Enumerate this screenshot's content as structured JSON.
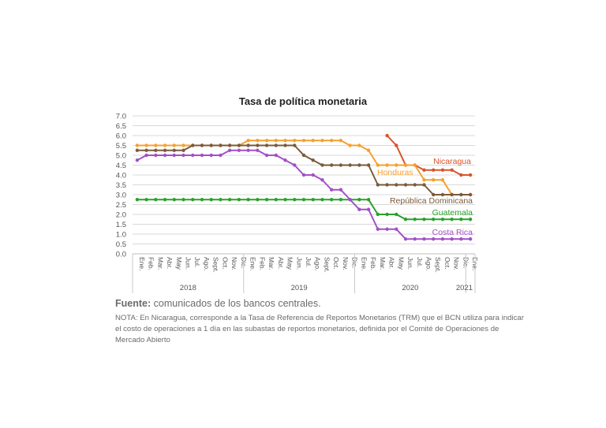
{
  "chart_data": {
    "type": "line",
    "title": "Tasa de política monetaria",
    "xlabel": "",
    "ylabel": "",
    "ylim": [
      0,
      7
    ],
    "yticks": [
      "0.0",
      "0.5",
      "1.0",
      "1.5",
      "2.0",
      "2.5",
      "3.0",
      "3.5",
      "4.0",
      "4.5",
      "5.0",
      "5.5",
      "6.0",
      "6.5",
      "7.0"
    ],
    "grid": true,
    "x_months": [
      "Ene.",
      "Feb.",
      "Mar.",
      "Abr.",
      "May",
      "Jun.",
      "Jul.",
      "Ago.",
      "Sept.",
      "Oct.",
      "Nov.",
      "Dic.",
      "Ene.",
      "Feb.",
      "Mar.",
      "Abr.",
      "May",
      "Jun.",
      "Jul.",
      "Ago.",
      "Sept.",
      "Oct.",
      "Nov.",
      "Dic.",
      "Ene.",
      "Feb.",
      "Mar.",
      "Abr.",
      "May",
      "Jun.",
      "Jul.",
      "Ago.",
      "Sept.",
      "Oct.",
      "Nov.",
      "Dic.",
      "Ene."
    ],
    "x_years": [
      {
        "label": "2018",
        "start": 0,
        "end": 11
      },
      {
        "label": "2019",
        "start": 12,
        "end": 23
      },
      {
        "label": "2020",
        "start": 24,
        "end": 35
      },
      {
        "label": "2021",
        "start": 36,
        "end": 36
      }
    ],
    "series": [
      {
        "name": "Nicaragua",
        "color": "#d9532b",
        "values": [
          null,
          null,
          null,
          null,
          null,
          null,
          null,
          null,
          null,
          null,
          null,
          null,
          null,
          null,
          null,
          null,
          null,
          null,
          null,
          null,
          null,
          null,
          null,
          null,
          null,
          null,
          null,
          6.0,
          5.5,
          4.5,
          4.5,
          4.25,
          4.25,
          4.25,
          4.25,
          4.0,
          4.0
        ]
      },
      {
        "name": "Honduras",
        "color": "#f5a031",
        "values": [
          5.5,
          5.5,
          5.5,
          5.5,
          5.5,
          5.5,
          5.5,
          5.5,
          5.5,
          5.5,
          5.5,
          5.5,
          5.75,
          5.75,
          5.75,
          5.75,
          5.75,
          5.75,
          5.75,
          5.75,
          5.75,
          5.75,
          5.75,
          5.5,
          5.5,
          5.25,
          4.5,
          4.5,
          4.5,
          4.5,
          4.5,
          3.75,
          3.75,
          3.75,
          3.0,
          3.0,
          3.0
        ]
      },
      {
        "name": "República Dominicana",
        "color": "#7b5a3a",
        "values": [
          5.25,
          5.25,
          5.25,
          5.25,
          5.25,
          5.25,
          5.5,
          5.5,
          5.5,
          5.5,
          5.5,
          5.5,
          5.5,
          5.5,
          5.5,
          5.5,
          5.5,
          5.5,
          5.0,
          4.75,
          4.5,
          4.5,
          4.5,
          4.5,
          4.5,
          4.5,
          3.5,
          3.5,
          3.5,
          3.5,
          3.5,
          3.5,
          3.0,
          3.0,
          3.0,
          3.0,
          3.0
        ]
      },
      {
        "name": "Guatemala",
        "color": "#2aa12a",
        "values": [
          2.75,
          2.75,
          2.75,
          2.75,
          2.75,
          2.75,
          2.75,
          2.75,
          2.75,
          2.75,
          2.75,
          2.75,
          2.75,
          2.75,
          2.75,
          2.75,
          2.75,
          2.75,
          2.75,
          2.75,
          2.75,
          2.75,
          2.75,
          2.75,
          2.75,
          2.75,
          2.0,
          2.0,
          2.0,
          1.75,
          1.75,
          1.75,
          1.75,
          1.75,
          1.75,
          1.75,
          1.75
        ]
      },
      {
        "name": "Costa Rica",
        "color": "#a34fc9",
        "values": [
          4.75,
          5.0,
          5.0,
          5.0,
          5.0,
          5.0,
          5.0,
          5.0,
          5.0,
          5.0,
          5.25,
          5.25,
          5.25,
          5.25,
          5.0,
          5.0,
          4.75,
          4.5,
          4.0,
          4.0,
          3.75,
          3.25,
          3.25,
          2.75,
          2.25,
          2.25,
          1.25,
          1.25,
          1.25,
          0.75,
          0.75,
          0.75,
          0.75,
          0.75,
          0.75,
          0.75,
          0.75
        ]
      }
    ]
  },
  "source": {
    "label": "Fuente:",
    "text": "comunicados de los bancos centrales."
  },
  "note": "NOTA: En Nicaragua, corresponde a la Tasa de Referencia de Reportos Monetarios (TRM) que el BCN utiliza para indicar el costo de operaciones a 1 día en las subastas de reportos monetarios, definida por el Comité de Operaciones de Mercado Abierto"
}
